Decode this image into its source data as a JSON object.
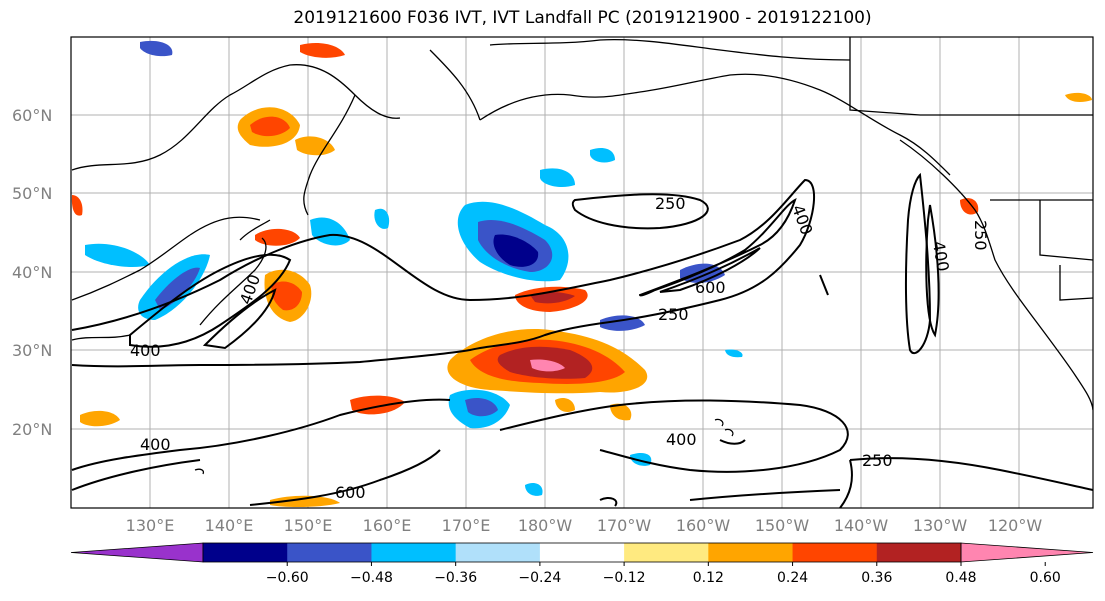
{
  "title": "2019121600 F036 IVT, IVT Landfall PC (2019121900 - 2019122100)",
  "lat_labels": [
    "60°N",
    "50°N",
    "40°N",
    "30°N",
    "20°N"
  ],
  "lon_labels": [
    "130°E",
    "140°E",
    "150°E",
    "160°E",
    "170°E",
    "180°W",
    "170°W",
    "160°W",
    "150°W",
    "140°W",
    "130°W",
    "120°W"
  ],
  "colorbar": {
    "colors": [
      "#9932cc",
      "#00008b",
      "#3a54c8",
      "#00bfff",
      "#b0e0fa",
      "#ffffff",
      "#ffea80",
      "#ffa500",
      "#ff4500",
      "#b22222",
      "#ff85b0"
    ],
    "tick_labels": [
      "−0.60",
      "−0.48",
      "−0.36",
      "−0.24",
      "−0.12",
      "0.12",
      "0.24",
      "0.36",
      "0.48",
      "0.60"
    ]
  },
  "contour_labels": [
    "250",
    "400",
    "600",
    "250",
    "400",
    "400",
    "400",
    "250",
    "400",
    "600",
    "400",
    "250"
  ],
  "colors": {
    "land": "#000000",
    "grid": "#b0b0b0",
    "contour": "#000000"
  }
}
